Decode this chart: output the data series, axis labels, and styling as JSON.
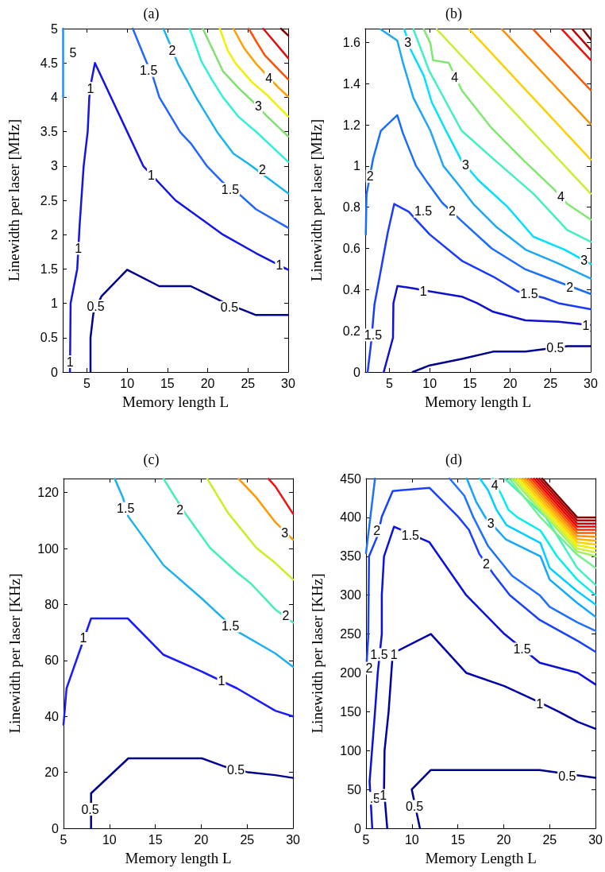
{
  "chart_data": [
    {
      "type": "line",
      "title": "(a)",
      "xlabel": "Memory length L",
      "ylabel": "Linewidth per laser [MHz]",
      "xlim": [
        2,
        30
      ],
      "ylim": [
        0,
        5
      ],
      "xticks": [
        5,
        10,
        15,
        20,
        25,
        30
      ],
      "yticks": [
        0,
        0.5,
        1,
        1.5,
        2,
        2.5,
        3,
        3.5,
        4,
        4.5,
        5
      ],
      "grid": false,
      "series": [
        {
          "color": "#00008f",
          "x": [
            5.45,
            5.45,
            5.8,
            6.8,
            10,
            13.98,
            17.9,
            21.9,
            26,
            30
          ],
          "values": [
            0,
            0.5,
            0.85,
            1.1,
            1.49,
            1.25,
            1.25,
            1.02,
            0.83,
            0.83
          ]
        },
        {
          "color": "#1414e6",
          "x": [
            2.9,
            2.98,
            3.8,
            4.1,
            4.6,
            5.1,
            5.3,
            5.6,
            6.0,
            10.0,
            12.0,
            16.0,
            21.9,
            26,
            30
          ],
          "values": [
            0,
            1.0,
            1.5,
            2.14,
            3.0,
            3.5,
            4.0,
            4.26,
            4.5,
            3.5,
            3.0,
            2.5,
            2.0,
            1.73,
            1.49
          ]
        },
        {
          "color": "#2090ff",
          "x": [
            2.05,
            2.05
          ],
          "values": [
            5,
            4
          ]
        },
        {
          "color": "#2266ff",
          "x": [
            10.7,
            12.2,
            13.2,
            14.0,
            16.6,
            17.9,
            19.9,
            21.9,
            24.2,
            26,
            30
          ],
          "values": [
            5,
            4.57,
            4.3,
            4.0,
            3.49,
            3.33,
            3.0,
            2.76,
            2.56,
            2.37,
            2.1
          ]
        },
        {
          "color": "#1ab2f0",
          "x": [
            14.5,
            15.3,
            16.3,
            18.6,
            21.2,
            23.2,
            25.1,
            30
          ],
          "values": [
            5,
            4.78,
            4.49,
            3.99,
            3.49,
            3.18,
            3.03,
            2.6
          ]
        },
        {
          "color": "#30f0d8",
          "x": [
            17.76,
            19.2,
            20.5,
            21.9,
            23.8,
            26.1,
            30
          ],
          "values": [
            5,
            4.53,
            4.26,
            4.0,
            3.72,
            3.49,
            3.06
          ]
        },
        {
          "color": "#80e070",
          "x": [
            19.4,
            20.2,
            21.9,
            23.8,
            25.5,
            27.4,
            30
          ],
          "values": [
            5,
            4.8,
            4.38,
            4.14,
            3.95,
            3.72,
            3.43
          ]
        },
        {
          "color": "#f0f000",
          "x": [
            21.5,
            22.5,
            23.5,
            25.5,
            27.4,
            30
          ],
          "values": [
            5,
            4.68,
            4.49,
            4.22,
            4.03,
            3.72
          ]
        },
        {
          "color": "#ffa000",
          "x": [
            23.2,
            24.5,
            26,
            28.8,
            30
          ],
          "values": [
            5,
            4.72,
            4.49,
            4.14,
            4.01
          ]
        },
        {
          "color": "#ff5000",
          "x": [
            25.1,
            26,
            27.1,
            30
          ],
          "values": [
            5,
            4.82,
            4.61,
            4.26
          ]
        },
        {
          "color": "#e01010",
          "x": [
            26.9,
            30
          ],
          "values": [
            5,
            4.57
          ]
        },
        {
          "color": "#800000",
          "x": [
            29.1,
            30
          ],
          "values": [
            5,
            4.9
          ]
        }
      ],
      "annotations": [
        "5",
        {
          "text": "1.5",
          "x": 12.67,
          "y": 4.39
        },
        {
          "text": "2",
          "x": 15.6,
          "y": 4.68
        },
        {
          "text": "1",
          "x": 5.45,
          "y": 4.13
        },
        {
          "text": "1",
          "x": 3.94,
          "y": 1.8
        },
        {
          "text": "1",
          "x": 2.9,
          "y": 0.15
        },
        {
          "text": "0.5",
          "x": 6.1,
          "y": 0.96
        },
        {
          "text": "1",
          "x": 13.0,
          "y": 2.87
        },
        {
          "text": "1.5",
          "x": 22.8,
          "y": 2.66
        },
        {
          "text": "2",
          "x": 26.8,
          "y": 2.95
        },
        {
          "text": "3",
          "x": 26.3,
          "y": 3.87
        },
        {
          "text": "4",
          "x": 27.6,
          "y": 4.28
        },
        {
          "text": "1",
          "x": 28.9,
          "y": 1.56
        },
        {
          "text": "0.5",
          "x": 22.7,
          "y": 0.94
        }
      ]
    },
    {
      "type": "line",
      "title": "(b)",
      "xlabel": "Memory length L",
      "ylabel": "Linewidth per laser [MHz]",
      "xlim": [
        2,
        30
      ],
      "ylim": [
        0,
        1.667
      ],
      "xticks": [
        5,
        10,
        15,
        20,
        25,
        30
      ],
      "yticks": [
        0,
        0.2,
        0.4,
        0.6,
        0.8,
        1,
        1.2,
        1.4,
        1.6
      ],
      "grid": false,
      "series": [
        {
          "color": "#00008f",
          "x": [
            7.9,
            10,
            14,
            17.9,
            21.9,
            27.1,
            30
          ],
          "values": [
            0,
            0.032,
            0.064,
            0.099,
            0.099,
            0.125,
            0.125
          ]
        },
        {
          "color": "#1010d0",
          "x": [
            4.3,
            5.45,
            5.5,
            6,
            8.1,
            10,
            14,
            15.9,
            17.9,
            21.9,
            26,
            30
          ],
          "values": [
            0,
            0.167,
            0.334,
            0.418,
            0.405,
            0.392,
            0.366,
            0.334,
            0.292,
            0.251,
            0.244,
            0.228
          ]
        },
        {
          "color": "#1a3aff",
          "x": [
            2.3,
            2.75,
            3.15,
            3.97,
            4.79,
            5.6,
            7.4,
            10,
            14,
            17.9,
            20.9,
            24.2,
            26,
            30
          ],
          "values": [
            0,
            0.148,
            0.328,
            0.501,
            0.675,
            0.816,
            0.778,
            0.668,
            0.54,
            0.463,
            0.392,
            0.36,
            0.334,
            0.305
          ]
        },
        {
          "color": "#1a6cff",
          "x": [
            2.07,
            2.16,
            2.98,
            3.94,
            5.98,
            6.69,
            8.31,
            9.77,
            11.55,
            13.98,
            17.7,
            21.91,
            26,
            30
          ],
          "values": [
            0.668,
            0.861,
            1.035,
            1.171,
            1.247,
            1.158,
            1.0,
            0.917,
            0.822,
            0.733,
            0.6,
            0.498,
            0.437,
            0.379
          ]
        },
        {
          "color": "#1ca8f0",
          "x": [
            3.94,
            5.98,
            6.69,
            7.99,
            10.09,
            11.71,
            13.81,
            15.43,
            18.35,
            21.91,
            25.79,
            30
          ],
          "values": [
            1.663,
            1.609,
            1.501,
            1.33,
            1.171,
            1.0,
            0.898,
            0.816,
            0.702,
            0.594,
            0.53,
            0.454
          ]
        },
        {
          "color": "#00e0ff",
          "x": [
            6.86,
            7.66,
            9.28,
            10.25,
            12.03,
            13.98,
            16.08,
            19.64,
            22.88,
            26.76,
            30
          ],
          "values": [
            1.663,
            1.564,
            1.438,
            1.311,
            1.171,
            1.025,
            0.93,
            0.803,
            0.657,
            0.594,
            0.524
          ]
        },
        {
          "color": "#40f0c0",
          "x": [
            7.99,
            8.96,
            9.93,
            12.03,
            13.98,
            18.02,
            22.88,
            27.09,
            30
          ],
          "values": [
            1.663,
            1.564,
            1.463,
            1.311,
            1.171,
            1.031,
            0.866,
            0.689,
            0.632
          ]
        },
        {
          "color": "#80e870",
          "x": [
            9.28,
            10.09,
            10.42,
            12.36,
            13.98,
            17.7,
            21.58,
            25.47,
            27.09,
            30
          ],
          "values": [
            1.663,
            1.596,
            1.514,
            1.501,
            1.368,
            1.184,
            1.031,
            0.886,
            0.816,
            0.74
          ]
        },
        {
          "color": "#c8f030",
          "x": [
            10.9,
            30
          ],
          "values": [
            1.663,
            0.866
          ]
        },
        {
          "color": "#ffd000",
          "x": [
            14.95,
            30
          ],
          "values": [
            1.663,
            1.031
          ]
        },
        {
          "color": "#ff9000",
          "x": [
            18.99,
            30
          ],
          "values": [
            1.663,
            1.203
          ]
        },
        {
          "color": "#ff5000",
          "x": [
            22.88,
            30
          ],
          "values": [
            1.663,
            1.368
          ]
        },
        {
          "color": "#f01010",
          "x": [
            26.44,
            30
          ],
          "values": [
            1.663,
            1.514
          ]
        },
        {
          "color": "#c00000",
          "x": [
            27.73,
            30
          ],
          "values": [
            1.663,
            1.564
          ]
        },
        {
          "color": "#800000",
          "x": [
            29.03,
            30
          ],
          "values": [
            1.663,
            1.615
          ]
        }
      ],
      "annotations": [
        {
          "text": "3",
          "x": 7.3,
          "y": 1.6
        },
        {
          "text": "4",
          "x": 13.1,
          "y": 1.43
        },
        {
          "text": "2",
          "x": 2.6,
          "y": 0.95
        },
        {
          "text": "3",
          "x": 14.46,
          "y": 1.006
        },
        {
          "text": "2",
          "x": 12.8,
          "y": 0.78
        },
        {
          "text": "1.5",
          "x": 9.2,
          "y": 0.78
        },
        {
          "text": "4",
          "x": 26.3,
          "y": 0.85
        },
        {
          "text": "3",
          "x": 29.19,
          "y": 0.543
        },
        {
          "text": "2",
          "x": 27.4,
          "y": 0.411
        },
        {
          "text": "1.5",
          "x": 22.35,
          "y": 0.379
        },
        {
          "text": "1",
          "x": 9.22,
          "y": 0.392
        },
        {
          "text": "1",
          "x": 29.4,
          "y": 0.225
        },
        {
          "text": "0.5",
          "x": 25.6,
          "y": 0.116
        },
        {
          "text": "1.5",
          "x": 2.98,
          "y": 0.18
        }
      ]
    },
    {
      "type": "line",
      "title": "(c)",
      "xlabel": "Memory length L",
      "ylabel": "Linewidth per laser [KHz]",
      "xlim": [
        5,
        30
      ],
      "ylim": [
        0,
        125
      ],
      "xticks": [
        5,
        10,
        15,
        20,
        25,
        30
      ],
      "yticks": [
        0,
        20,
        40,
        60,
        80,
        100,
        120
      ],
      "grid": false,
      "series": [
        {
          "color": "#00008f",
          "x": [
            8,
            8,
            12.06,
            15.9,
            20.07,
            22.6,
            25.1,
            28.07,
            30
          ],
          "values": [
            0,
            12.5,
            25,
            25,
            25,
            22,
            20,
            19,
            18
          ]
        },
        {
          "color": "#1a1aff",
          "x": [
            5,
            5.33,
            8,
            12,
            15.9,
            20.07,
            23.9,
            28.07,
            30
          ],
          "values": [
            37,
            50,
            75,
            75,
            62,
            56,
            50,
            42,
            40
          ]
        },
        {
          "color": "#1cb0f0",
          "x": [
            10.58,
            11.47,
            12.06,
            15.9,
            20.07,
            23.9,
            28.07,
            30
          ],
          "values": [
            124.9,
            118.2,
            111.4,
            94,
            82.1,
            70.4,
            62.5,
            57.7
          ]
        },
        {
          "color": "#40f0b8",
          "x": [
            15.9,
            18.29,
            20.96,
            23.9,
            25.4,
            28.07,
            30
          ],
          "values": [
            124.9,
            112.4,
            100.2,
            91.4,
            87.5,
            78.2,
            73.5
          ]
        },
        {
          "color": "#c8f020",
          "x": [
            20.66,
            22.88,
            26,
            28.07,
            30
          ],
          "values": [
            124.9,
            112.9,
            100.2,
            94.8,
            88.9
          ]
        },
        {
          "color": "#ff9800",
          "x": [
            24.07,
            26,
            28.07,
            30
          ],
          "values": [
            124.9,
            118.2,
            109.4,
            103.1
          ]
        },
        {
          "color": "#f01010",
          "x": [
            27.33,
            28.07,
            30
          ],
          "values": [
            124.9,
            122.2,
            112.4
          ]
        }
      ],
      "annotations": [
        {
          "text": "1.5",
          "x": 11.76,
          "y": 114.3
        },
        {
          "text": "2",
          "x": 17.69,
          "y": 113.8
        },
        {
          "text": "3",
          "x": 29.11,
          "y": 105.5
        },
        {
          "text": "1.5",
          "x": 23.18,
          "y": 72.3
        },
        {
          "text": "2",
          "x": 29.2,
          "y": 76
        },
        {
          "text": "1",
          "x": 7.16,
          "y": 67.9
        },
        {
          "text": "1",
          "x": 22.2,
          "y": 52.8
        },
        {
          "text": "0.5",
          "x": 23.77,
          "y": 21
        },
        {
          "text": "0.5",
          "x": 7.9,
          "y": 6.8
        }
      ]
    },
    {
      "type": "line",
      "title": "(d)",
      "xlabel": "Memory Length L",
      "ylabel": "Linewidth per laser [KHz]",
      "xlim": [
        5,
        30
      ],
      "ylim": [
        0,
        450
      ],
      "xticks": [
        5,
        10,
        15,
        20,
        25,
        30
      ],
      "yticks": [
        0,
        50,
        100,
        150,
        200,
        250,
        300,
        350,
        400,
        450
      ],
      "grid": false,
      "series": [
        {
          "color": "#00008f",
          "x": [
            10.87,
            9.98,
            12.06,
            15.9,
            23.9,
            30
          ],
          "values": [
            0,
            50,
            75,
            75,
            75,
            65
          ]
        },
        {
          "color": "#0000a8",
          "x": [
            7.31,
            6.96,
            7.02,
            7.46,
            7.76,
            7.91,
            12.06,
            15.91,
            20.07,
            23.92,
            26,
            28.07,
            30
          ],
          "values": [
            0,
            50,
            100,
            150,
            200,
            225,
            250,
            200,
            183,
            162,
            150,
            137,
            128
          ]
        },
        {
          "color": "#0a10e0",
          "x": [
            5.68,
            5.39,
            5.98,
            6.28,
            6.72,
            6.72,
            6.96,
            8.05,
            11.91,
            15.91,
            20.07,
            23.92,
            28.07,
            30
          ],
          "values": [
            0,
            60,
            150,
            200,
            250,
            300,
            350,
            388,
            368,
            300,
            250,
            213,
            200,
            185
          ]
        },
        {
          "color": "#1a40ff",
          "x": [
            5,
            5.24,
            5.33,
            6.28,
            6.72,
            7.91,
            11.91,
            15.02,
            16.21,
            17.34,
            18.88,
            20.66,
            23.92,
            28.07,
            30
          ],
          "values": [
            200,
            246,
            350,
            377,
            401,
            434,
            438,
            401,
            384,
            353,
            327,
            300,
            268,
            241,
            227
          ]
        },
        {
          "color": "#2070ff",
          "x": [
            5,
            5.98
          ],
          "values": [
            354,
            450
          ]
        },
        {
          "color": "#2070ff",
          "x": [
            14.1,
            15.7,
            16.7,
            18.3,
            20.9,
            23.9,
            25,
            28,
            30
          ],
          "values": [
            450,
            428,
            400,
            363,
            325,
            300,
            285,
            265,
            254
          ]
        },
        {
          "color": "#10a8ff",
          "x": [
            15.98,
            17,
            18,
            19.2,
            20.2,
            24,
            25,
            28,
            30
          ],
          "values": [
            450,
            420,
            400,
            385,
            372,
            350,
            320,
            290,
            272
          ]
        },
        {
          "color": "#00d0ff",
          "x": [
            17.4,
            18.3,
            19.2,
            20.3,
            24,
            25,
            28,
            30
          ],
          "values": [
            450,
            435,
            410,
            390,
            367,
            335,
            305,
            288
          ]
        },
        {
          "color": "#00f0f0",
          "x": [
            18.8,
            19.8,
            20.5,
            21.5,
            24,
            25.8,
            28,
            30
          ],
          "values": [
            450,
            428,
            410,
            400,
            383,
            350,
            320,
            300
          ]
        },
        {
          "color": "#40f0c0",
          "x": [
            20.1,
            24.6,
            28,
            30
          ],
          "values": [
            450,
            400,
            335,
            313
          ]
        },
        {
          "color": "#70f090",
          "x": [
            20.6,
            24,
            28,
            30
          ],
          "values": [
            450,
            400,
            352,
            335
          ]
        },
        {
          "color": "#a0f060",
          "x": [
            20.9,
            28,
            30
          ],
          "values": [
            450,
            356,
            350
          ]
        },
        {
          "color": "#d0f030",
          "x": [
            21.2,
            28,
            30
          ],
          "values": [
            450,
            360,
            355
          ]
        },
        {
          "color": "#f0f000",
          "x": [
            21.5,
            28,
            30
          ],
          "values": [
            450,
            364,
            360
          ]
        },
        {
          "color": "#ffd000",
          "x": [
            21.8,
            28,
            30
          ],
          "values": [
            450,
            368,
            365
          ]
        },
        {
          "color": "#ffb000",
          "x": [
            22.1,
            28,
            30
          ],
          "values": [
            450,
            372,
            370
          ]
        },
        {
          "color": "#ff9000",
          "x": [
            22.4,
            28,
            30
          ],
          "values": [
            450,
            376,
            375
          ]
        },
        {
          "color": "#ff6000",
          "x": [
            22.7,
            28,
            30
          ],
          "values": [
            450,
            380,
            380
          ]
        },
        {
          "color": "#ff3000",
          "x": [
            23.0,
            28,
            30
          ],
          "values": [
            450,
            384,
            384
          ]
        },
        {
          "color": "#f00000",
          "x": [
            23.3,
            28,
            30
          ],
          "values": [
            450,
            388,
            388
          ]
        },
        {
          "color": "#d00000",
          "x": [
            23.6,
            28,
            30
          ],
          "values": [
            450,
            392,
            392
          ]
        },
        {
          "color": "#b00000",
          "x": [
            23.9,
            28,
            30
          ],
          "values": [
            450,
            396,
            396
          ]
        },
        {
          "color": "#800000",
          "x": [
            24.2,
            28,
            30
          ],
          "values": [
            450,
            400,
            400
          ]
        }
      ],
      "annotations": [
        {
          "text": "4",
          "x": 19.03,
          "y": 441.5
        },
        {
          "text": "3",
          "x": 18.6,
          "y": 392
        },
        {
          "text": "2",
          "x": 18.1,
          "y": 340
        },
        {
          "text": "2",
          "x": 6.19,
          "y": 383
        },
        {
          "text": "1.5",
          "x": 9.83,
          "y": 376.8
        },
        {
          "text": "2",
          "x": 5.35,
          "y": 206
        },
        {
          "text": "1.5",
          "x": 6.42,
          "y": 223.6
        },
        {
          "text": "1",
          "x": 8.05,
          "y": 223.6
        },
        {
          "text": "1.5",
          "x": 22,
          "y": 230.6
        },
        {
          "text": "1",
          "x": 23.92,
          "y": 160.2
        },
        {
          "text": "0.5",
          "x": 26.9,
          "y": 66.9
        },
        {
          "text": "0.5",
          "x": 10.28,
          "y": 28.2
        },
        {
          "text": ".5",
          "x": 5.98,
          "y": 38.7
        },
        {
          "text": "1",
          "x": 6.87,
          "y": 42.3
        }
      ]
    }
  ]
}
